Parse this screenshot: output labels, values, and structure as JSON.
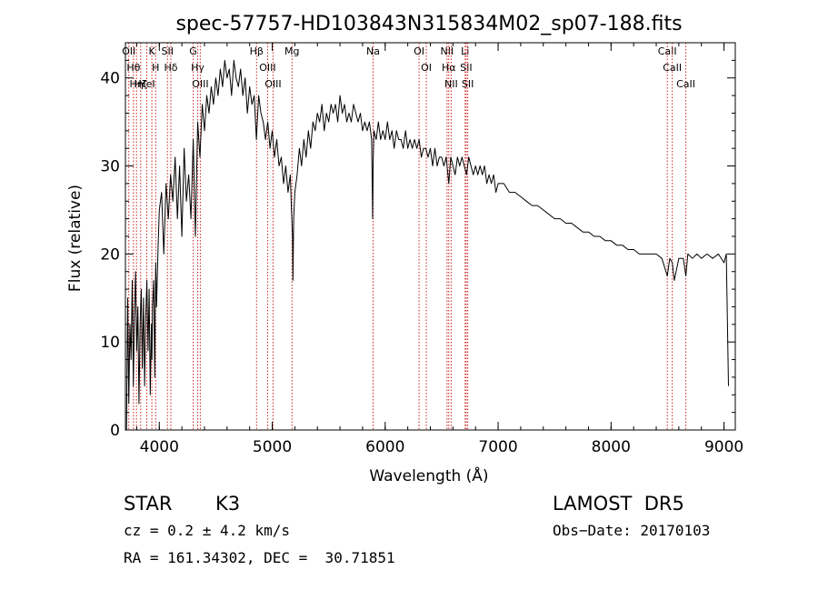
{
  "chart_data": {
    "type": "line",
    "title": "spec-57757-HD103843N315834M02_sp07-188.fits",
    "xlabel": "Wavelength (Å)",
    "ylabel": "Flux (relative)",
    "xlim": [
      3700,
      9100
    ],
    "ylim": [
      0,
      44
    ],
    "xticks": [
      {
        "value": 4000,
        "label": "4000"
      },
      {
        "value": 5000,
        "label": "5000"
      },
      {
        "value": 6000,
        "label": "6000"
      },
      {
        "value": 7000,
        "label": "7000"
      },
      {
        "value": 8000,
        "label": "8000"
      },
      {
        "value": 9000,
        "label": "9000"
      }
    ],
    "yticks": [
      {
        "value": 0,
        "label": "0"
      },
      {
        "value": 10,
        "label": "10"
      },
      {
        "value": 20,
        "label": "20"
      },
      {
        "value": 30,
        "label": "30"
      },
      {
        "value": 40,
        "label": "40"
      }
    ],
    "grid": false,
    "series": [
      {
        "x": [
          3710,
          3720,
          3730,
          3740,
          3750,
          3760,
          3770,
          3780,
          3790,
          3800,
          3810,
          3820,
          3830,
          3840,
          3850,
          3860,
          3870,
          3880,
          3890,
          3900,
          3910,
          3920,
          3930,
          3935,
          3940,
          3950,
          3960,
          3968,
          3975,
          3990,
          4000,
          4020,
          4040,
          4060,
          4080,
          4100,
          4120,
          4140,
          4160,
          4180,
          4200,
          4220,
          4240,
          4260,
          4280,
          4300,
          4320,
          4340,
          4360,
          4380,
          4400,
          4420,
          4440,
          4460,
          4480,
          4500,
          4520,
          4540,
          4560,
          4580,
          4600,
          4620,
          4640,
          4660,
          4680,
          4700,
          4720,
          4740,
          4760,
          4780,
          4800,
          4820,
          4840,
          4860,
          4880,
          4900,
          4920,
          4940,
          4960,
          4980,
          5000,
          5020,
          5040,
          5060,
          5080,
          5100,
          5120,
          5140,
          5160,
          5170,
          5180,
          5183,
          5190,
          5200,
          5220,
          5240,
          5260,
          5280,
          5300,
          5320,
          5340,
          5360,
          5380,
          5400,
          5420,
          5440,
          5460,
          5480,
          5500,
          5520,
          5540,
          5560,
          5580,
          5600,
          5620,
          5640,
          5660,
          5680,
          5700,
          5720,
          5740,
          5760,
          5780,
          5800,
          5820,
          5840,
          5860,
          5880,
          5889,
          5893,
          5900,
          5920,
          5940,
          5960,
          5980,
          6000,
          6020,
          6040,
          6060,
          6080,
          6100,
          6120,
          6140,
          6160,
          6180,
          6200,
          6220,
          6240,
          6260,
          6280,
          6300,
          6320,
          6340,
          6360,
          6380,
          6400,
          6420,
          6440,
          6460,
          6480,
          6500,
          6520,
          6540,
          6563,
          6580,
          6600,
          6620,
          6640,
          6660,
          6680,
          6700,
          6720,
          6740,
          6760,
          6780,
          6800,
          6820,
          6840,
          6860,
          6880,
          6900,
          6920,
          6940,
          6960,
          6980,
          7000,
          7050,
          7100,
          7150,
          7200,
          7250,
          7300,
          7350,
          7400,
          7450,
          7500,
          7550,
          7600,
          7650,
          7700,
          7750,
          7800,
          7850,
          7900,
          7950,
          8000,
          8050,
          8100,
          8150,
          8200,
          8250,
          8300,
          8350,
          8400,
          8450,
          8498,
          8520,
          8542,
          8560,
          8600,
          8640,
          8662,
          8680,
          8720,
          8760,
          8800,
          8850,
          8900,
          8950,
          9000,
          9020,
          9040
        ],
        "y": [
          0,
          15,
          3,
          12,
          8,
          17,
          5,
          13,
          18,
          9,
          14,
          3,
          12,
          16,
          7,
          15,
          5,
          13,
          17,
          9,
          16,
          4,
          12,
          8,
          14,
          17,
          6,
          19,
          14,
          21,
          25,
          27,
          20,
          28,
          24,
          29,
          26,
          31,
          24,
          30,
          22,
          32,
          26,
          29,
          24,
          33,
          22,
          35,
          31,
          37,
          34,
          38,
          36,
          39,
          37,
          40,
          38,
          41,
          39,
          42,
          40,
          41,
          38,
          42,
          40,
          39,
          41,
          38,
          40,
          36,
          39,
          37,
          38,
          33,
          38,
          36,
          35,
          33,
          35,
          32,
          34,
          31,
          33,
          30,
          31,
          28,
          30,
          27,
          29,
          25,
          22,
          17,
          24,
          27,
          29,
          32,
          30,
          33,
          31,
          34,
          32,
          35,
          34,
          36,
          35,
          37,
          34,
          36,
          35,
          37,
          36,
          37,
          35,
          38,
          36,
          37,
          35,
          36,
          35,
          37,
          36,
          35,
          36,
          34,
          35,
          34,
          35,
          33,
          24,
          30,
          34,
          33,
          35,
          33,
          34,
          33,
          35,
          33,
          34,
          32,
          34,
          33,
          33,
          32,
          34,
          32,
          33,
          32,
          33,
          32,
          33,
          31,
          32,
          32,
          31,
          32,
          30,
          32,
          30,
          31,
          31,
          30,
          31,
          28,
          31,
          30,
          29,
          31,
          30,
          31,
          30,
          29,
          31,
          30,
          29,
          30,
          29,
          30,
          29,
          30,
          28,
          29,
          28,
          29,
          27,
          28,
          28,
          27,
          27,
          26.5,
          26,
          25.5,
          25.5,
          25,
          24.5,
          24,
          24,
          23.5,
          23.5,
          23,
          22.5,
          22.5,
          22,
          22,
          21.5,
          21.5,
          21,
          21,
          20.5,
          20.5,
          20,
          20,
          20,
          20,
          19.5,
          17.5,
          19.5,
          19,
          17,
          19.5,
          19.5,
          17.5,
          20,
          19.5,
          20,
          19.5,
          20,
          19.5,
          20,
          19,
          20,
          5
        ]
      }
    ],
    "annotations": [
      {
        "x": 3730,
        "label": "OII"
      },
      {
        "x": 3771,
        "label": "Hθ"
      },
      {
        "x": 3798,
        "label": "Hη"
      },
      {
        "x": 3835,
        "label": "Hζ"
      },
      {
        "x": 3889,
        "label": "HeI"
      },
      {
        "x": 3934,
        "label": "K"
      },
      {
        "x": 3968,
        "label": "H"
      },
      {
        "x": 4072,
        "label": "SII"
      },
      {
        "x": 4102,
        "label": "Hδ"
      },
      {
        "x": 4300,
        "label": "G"
      },
      {
        "x": 4340,
        "label": "Hγ"
      },
      {
        "x": 4363,
        "label": "OIII"
      },
      {
        "x": 4861,
        "label": "Hβ"
      },
      {
        "x": 4959,
        "label": "OIII"
      },
      {
        "x": 5007,
        "label": "OIII"
      },
      {
        "x": 5175,
        "label": "Mg"
      },
      {
        "x": 5893,
        "label": "Na"
      },
      {
        "x": 6300,
        "label": "OI"
      },
      {
        "x": 6364,
        "label": "OI"
      },
      {
        "x": 6548,
        "label": "NII"
      },
      {
        "x": 6563,
        "label": "Hα"
      },
      {
        "x": 6584,
        "label": "NII"
      },
      {
        "x": 6708,
        "label": "Li"
      },
      {
        "x": 6717,
        "label": "SII"
      },
      {
        "x": 6731,
        "label": "SII"
      },
      {
        "x": 8498,
        "label": "CaII"
      },
      {
        "x": 8542,
        "label": "CaII"
      },
      {
        "x": 8662,
        "label": "CaII"
      }
    ]
  },
  "info": {
    "object_class": "STAR",
    "subclass": "K3",
    "survey": "LAMOST  DR5",
    "cz": "cz = 0.2 ± 4.2 km/s",
    "obs_date": "Obs−Date: 20170103",
    "coords": "RA = 161.34302, DEC =  30.71851"
  }
}
